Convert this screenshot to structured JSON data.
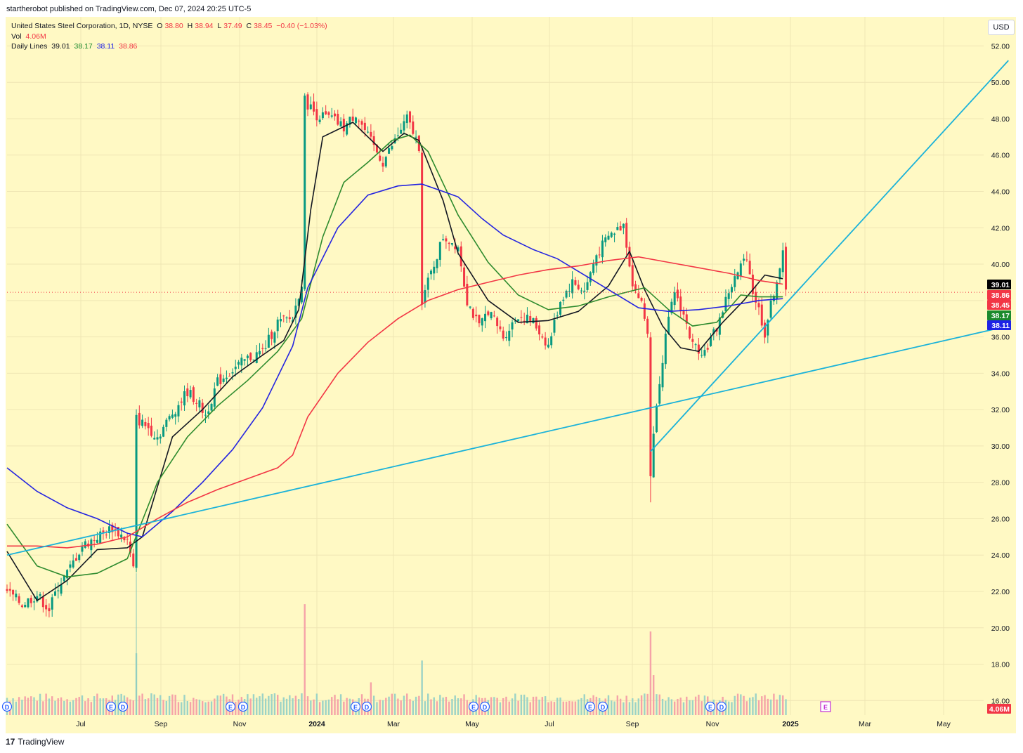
{
  "header": {
    "publish_note": "startherobot published on TradingView.com, Dec 07, 2024 20:25 UTC-5"
  },
  "legend": {
    "symbol": "United States Steel Corporation, 1D, NYSE",
    "o_label": "O",
    "o_value": "38.80",
    "h_label": "H",
    "h_value": "38.94",
    "l_label": "L",
    "l_value": "37.49",
    "c_label": "C",
    "c_value": "38.45",
    "change": "−0.40 (−1.03%)",
    "vol_label": "Vol",
    "vol_value": "4.06M",
    "ma_label": "Daily Lines",
    "ma_values": [
      "39.01",
      "38.17",
      "38.11",
      "38.86"
    ]
  },
  "currency_button": "USD",
  "brand": {
    "logo": "17",
    "name": "TradingView"
  },
  "colors": {
    "background": "#fff9c4",
    "up": "#089981",
    "down": "#f23645",
    "ma_black": "#131722",
    "ma_green": "#2e8b2e",
    "ma_blue": "#2424e0",
    "ma_red": "#f23645",
    "trendline": "#1ab2d9"
  },
  "chart_data": {
    "type": "candlestick",
    "title": "United States Steel Corporation, 1D, NYSE",
    "ylim": [
      15.2,
      53.6
    ],
    "y_ticks": [
      16,
      18,
      20,
      22,
      24,
      26,
      28,
      30,
      32,
      34,
      36,
      38,
      40,
      42,
      44,
      46,
      48,
      50,
      52
    ],
    "y_tick_labels": [
      "16.00",
      "18.00",
      "20.00",
      "22.00",
      "24.00",
      "26.00",
      "28.00",
      "30.00",
      "32.00",
      "34.00",
      "36.00",
      "38.00",
      "40.00",
      "42.00",
      "44.00",
      "46.00",
      "48.00",
      "50.00",
      "52.00"
    ],
    "x_ticks": [
      {
        "label": "Jul",
        "bold": false
      },
      {
        "label": "Sep",
        "bold": false
      },
      {
        "label": "Nov",
        "bold": false
      },
      {
        "label": "2024",
        "bold": true
      },
      {
        "label": "Mar",
        "bold": false
      },
      {
        "label": "May",
        "bold": false
      },
      {
        "label": "Jul",
        "bold": false
      },
      {
        "label": "Sep",
        "bold": false
      },
      {
        "label": "Nov",
        "bold": false
      },
      {
        "label": "2025",
        "bold": true
      },
      {
        "label": "Mar",
        "bold": false
      },
      {
        "label": "May",
        "bold": false
      }
    ],
    "price_path": [
      [
        0,
        22.0
      ],
      [
        5,
        21.3
      ],
      [
        10,
        21.8
      ],
      [
        14,
        21.0
      ],
      [
        17,
        22.3
      ],
      [
        20,
        23.0
      ],
      [
        25,
        24.5
      ],
      [
        30,
        25.0
      ],
      [
        35,
        25.5
      ],
      [
        40,
        24.8
      ],
      [
        42,
        23.2
      ],
      [
        43,
        31.5
      ],
      [
        47,
        31.0
      ],
      [
        50,
        30.5
      ],
      [
        55,
        31.8
      ],
      [
        60,
        33.0
      ],
      [
        63,
        32.5
      ],
      [
        66,
        31.7
      ],
      [
        70,
        33.5
      ],
      [
        75,
        34.2
      ],
      [
        80,
        34.8
      ],
      [
        85,
        35.2
      ],
      [
        90,
        36.8
      ],
      [
        95,
        37.0
      ],
      [
        98,
        39.0
      ],
      [
        99,
        49.0
      ],
      [
        103,
        48.2
      ],
      [
        108,
        48.0
      ],
      [
        112,
        47.5
      ],
      [
        116,
        48.3
      ],
      [
        120,
        47.0
      ],
      [
        125,
        45.6
      ],
      [
        129,
        46.8
      ],
      [
        133,
        48.0
      ],
      [
        137,
        46.5
      ],
      [
        138,
        38.0
      ],
      [
        141,
        39.5
      ],
      [
        145,
        41.5
      ],
      [
        150,
        41.0
      ],
      [
        153,
        38.0
      ],
      [
        157,
        36.5
      ],
      [
        160,
        37.5
      ],
      [
        165,
        36.0
      ],
      [
        170,
        37.2
      ],
      [
        175,
        36.8
      ],
      [
        180,
        35.5
      ],
      [
        184,
        38.0
      ],
      [
        188,
        39.0
      ],
      [
        192,
        38.5
      ],
      [
        196,
        40.5
      ],
      [
        200,
        41.5
      ],
      [
        205,
        42.2
      ],
      [
        208,
        39.0
      ],
      [
        211,
        37.8
      ],
      [
        213,
        36.2
      ],
      [
        214,
        28.5
      ],
      [
        216,
        32.5
      ],
      [
        219,
        36.0
      ],
      [
        222,
        38.5
      ],
      [
        225,
        37.2
      ],
      [
        228,
        35.5
      ],
      [
        232,
        35.2
      ],
      [
        236,
        36.5
      ],
      [
        240,
        38.5
      ],
      [
        243,
        39.5
      ],
      [
        246,
        40.5
      ],
      [
        248,
        38.5
      ],
      [
        250,
        37.5
      ],
      [
        252,
        36.2
      ],
      [
        255,
        38.5
      ],
      [
        258,
        40.5
      ],
      [
        259,
        38.45
      ]
    ],
    "candle_count": 260,
    "x_span_days": 375,
    "volume": {
      "label": "Vol",
      "last": "4.06M",
      "spikes": [
        [
          43,
          18.6
        ],
        [
          99,
          21.3
        ],
        [
          121,
          17.0
        ],
        [
          138,
          18.2
        ],
        [
          214,
          19.8
        ],
        [
          215,
          17.4
        ]
      ],
      "base_level": 15.9
    },
    "moving_averages": [
      {
        "value": 39.01,
        "color": "#131722",
        "points": [
          [
            0,
            24.2
          ],
          [
            10,
            21.5
          ],
          [
            20,
            22.6
          ],
          [
            30,
            24.3
          ],
          [
            40,
            24.4
          ],
          [
            45,
            25.0
          ],
          [
            55,
            30.5
          ],
          [
            65,
            32.0
          ],
          [
            75,
            33.8
          ],
          [
            85,
            35.0
          ],
          [
            92,
            35.8
          ],
          [
            97,
            37.5
          ],
          [
            101,
            43.0
          ],
          [
            105,
            47.0
          ],
          [
            115,
            47.8
          ],
          [
            125,
            46.2
          ],
          [
            132,
            47.2
          ],
          [
            137,
            46.8
          ],
          [
            145,
            43.5
          ],
          [
            150,
            40.6
          ],
          [
            160,
            38.0
          ],
          [
            170,
            36.8
          ],
          [
            180,
            36.9
          ],
          [
            190,
            37.4
          ],
          [
            200,
            38.8
          ],
          [
            207,
            40.7
          ],
          [
            212,
            38.6
          ],
          [
            218,
            36.6
          ],
          [
            224,
            35.4
          ],
          [
            230,
            35.2
          ],
          [
            238,
            36.8
          ],
          [
            245,
            38.0
          ],
          [
            252,
            39.4
          ],
          [
            258,
            39.2
          ]
        ]
      },
      {
        "value": 38.17,
        "color": "#2e8b2e",
        "points": [
          [
            0,
            25.7
          ],
          [
            10,
            23.4
          ],
          [
            20,
            22.8
          ],
          [
            30,
            23.0
          ],
          [
            40,
            23.8
          ],
          [
            50,
            28.0
          ],
          [
            60,
            30.5
          ],
          [
            70,
            32.2
          ],
          [
            80,
            33.6
          ],
          [
            90,
            35.2
          ],
          [
            98,
            37.0
          ],
          [
            105,
            41.5
          ],
          [
            112,
            44.5
          ],
          [
            120,
            45.6
          ],
          [
            128,
            46.8
          ],
          [
            134,
            47.1
          ],
          [
            140,
            46.2
          ],
          [
            150,
            42.7
          ],
          [
            160,
            40.1
          ],
          [
            170,
            38.3
          ],
          [
            180,
            37.5
          ],
          [
            190,
            37.7
          ],
          [
            200,
            38.2
          ],
          [
            207,
            38.5
          ],
          [
            212,
            38.7
          ],
          [
            220,
            37.5
          ],
          [
            228,
            36.6
          ],
          [
            236,
            36.8
          ],
          [
            244,
            38.3
          ],
          [
            250,
            38.2
          ],
          [
            258,
            38.2
          ]
        ]
      },
      {
        "value": 38.11,
        "color": "#2424e0",
        "points": [
          [
            0,
            28.8
          ],
          [
            10,
            27.5
          ],
          [
            20,
            26.6
          ],
          [
            30,
            26.0
          ],
          [
            40,
            25.2
          ],
          [
            45,
            25.0
          ],
          [
            55,
            26.4
          ],
          [
            65,
            28.0
          ],
          [
            75,
            29.8
          ],
          [
            85,
            32.1
          ],
          [
            95,
            35.5
          ],
          [
            100,
            38.7
          ],
          [
            110,
            42.0
          ],
          [
            120,
            43.8
          ],
          [
            130,
            44.3
          ],
          [
            138,
            44.4
          ],
          [
            145,
            44.0
          ],
          [
            150,
            43.7
          ],
          [
            158,
            42.5
          ],
          [
            165,
            41.6
          ],
          [
            175,
            40.8
          ],
          [
            183,
            40.3
          ],
          [
            192,
            39.4
          ],
          [
            200,
            38.6
          ],
          [
            210,
            37.6
          ],
          [
            220,
            37.4
          ],
          [
            230,
            37.5
          ],
          [
            240,
            37.7
          ],
          [
            250,
            38.0
          ],
          [
            258,
            38.1
          ]
        ]
      },
      {
        "value": 38.86,
        "color": "#f23645",
        "points": [
          [
            0,
            24.5
          ],
          [
            10,
            24.5
          ],
          [
            20,
            24.4
          ],
          [
            30,
            24.6
          ],
          [
            40,
            25.0
          ],
          [
            50,
            26.0
          ],
          [
            60,
            26.9
          ],
          [
            70,
            27.6
          ],
          [
            80,
            28.2
          ],
          [
            90,
            28.8
          ],
          [
            95,
            29.5
          ],
          [
            100,
            31.6
          ],
          [
            110,
            34.0
          ],
          [
            120,
            35.7
          ],
          [
            130,
            37.0
          ],
          [
            140,
            38.0
          ],
          [
            150,
            38.6
          ],
          [
            160,
            39.0
          ],
          [
            170,
            39.4
          ],
          [
            180,
            39.7
          ],
          [
            190,
            39.9
          ],
          [
            200,
            40.2
          ],
          [
            210,
            40.4
          ],
          [
            220,
            40.1
          ],
          [
            230,
            39.8
          ],
          [
            240,
            39.5
          ],
          [
            250,
            39.1
          ],
          [
            258,
            38.9
          ]
        ]
      }
    ],
    "trendlines": [
      {
        "from": [
          0,
          24.0
        ],
        "to": [
          333,
          36.6
        ]
      },
      {
        "from": [
          214,
          29.7
        ],
        "to": [
          333,
          51.2
        ]
      }
    ],
    "last_price": 38.45,
    "price_badges": [
      "39.01",
      "38.86",
      "38.45",
      "38.17",
      "38.11"
    ],
    "vol_badge": "4.06M"
  }
}
